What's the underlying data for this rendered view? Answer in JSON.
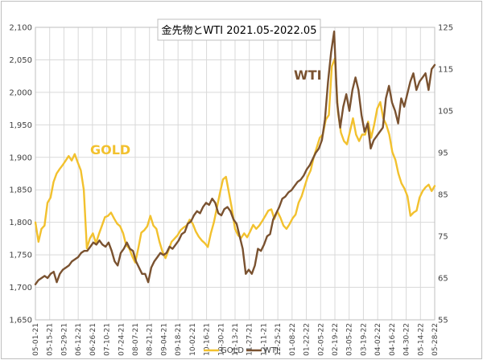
{
  "chart_data": {
    "type": "line",
    "title": "金先物とWTI 2021.05-2022.05",
    "y_left": {
      "min": 1650,
      "max": 2100,
      "step": 50,
      "ticks": [
        "1,650",
        "1,700",
        "1,750",
        "1,800",
        "1,850",
        "1,900",
        "1,950",
        "2,000",
        "2,050",
        "2,100"
      ]
    },
    "y_right": {
      "min": 55,
      "max": 125,
      "step": 10,
      "ticks": [
        "55",
        "65",
        "75",
        "85",
        "95",
        "105",
        "115",
        "125"
      ]
    },
    "x_ticks": [
      "05-01-21",
      "05-15-21",
      "05-29-21",
      "06-12-21",
      "06-26-21",
      "07-10-21",
      "07-24-21",
      "08-07-21",
      "08-21-21",
      "09-04-21",
      "09-18-21",
      "10-02-21",
      "10-16-21",
      "10-30-21",
      "11-13-21",
      "11-27-21",
      "12-11-21",
      "12-25-21",
      "01-08-22",
      "01-22-22",
      "02-05-22",
      "02-19-22",
      "03-05-22",
      "03-19-22",
      "04-02-22",
      "04-16-22",
      "04-30-22",
      "05-14-22",
      "05-28-22"
    ],
    "grid": true,
    "series": [
      {
        "name": "GOLD",
        "axis": "left",
        "color": "#f2c12e",
        "values": [
          1800,
          1770,
          1790,
          1795,
          1830,
          1838,
          1862,
          1875,
          1882,
          1888,
          1895,
          1902,
          1895,
          1905,
          1892,
          1880,
          1850,
          1760,
          1775,
          1783,
          1768,
          1782,
          1795,
          1808,
          1810,
          1815,
          1806,
          1798,
          1794,
          1783,
          1765,
          1760,
          1748,
          1738,
          1760,
          1784,
          1788,
          1794,
          1810,
          1795,
          1790,
          1770,
          1755,
          1745,
          1757,
          1770,
          1775,
          1780,
          1788,
          1792,
          1795,
          1804,
          1798,
          1786,
          1778,
          1772,
          1768,
          1762,
          1783,
          1800,
          1823,
          1845,
          1866,
          1870,
          1845,
          1820,
          1790,
          1780,
          1776,
          1783,
          1777,
          1786,
          1796,
          1790,
          1795,
          1802,
          1810,
          1818,
          1820,
          1805,
          1817,
          1807,
          1795,
          1790,
          1797,
          1806,
          1812,
          1830,
          1840,
          1855,
          1870,
          1880,
          1900,
          1915,
          1930,
          1935,
          1958,
          1965,
          2040,
          2052,
          1970,
          1938,
          1925,
          1920,
          1940,
          1960,
          1935,
          1925,
          1935,
          1935,
          1955,
          1930,
          1950,
          1975,
          1985,
          1960,
          1950,
          1935,
          1908,
          1896,
          1875,
          1860,
          1852,
          1840,
          1810,
          1815,
          1818,
          1838,
          1848,
          1854,
          1858,
          1848,
          1856
        ]
      },
      {
        "name": "WTI",
        "axis": "right",
        "color": "#7a5230",
        "values": [
          63.5,
          64.5,
          65,
          65.5,
          65,
          66,
          66.5,
          64,
          66,
          67,
          67.5,
          68,
          69,
          69.5,
          70,
          71,
          71.5,
          71.5,
          72.5,
          73.5,
          73,
          74,
          73,
          72.5,
          73.5,
          71.5,
          69,
          68,
          71,
          72,
          73.5,
          72,
          71.5,
          69,
          67.5,
          66,
          66,
          64,
          67.5,
          69,
          70,
          71,
          70.5,
          71,
          72.5,
          72,
          73,
          74,
          75.5,
          76,
          78,
          78.5,
          80,
          81,
          80.5,
          82,
          83,
          82.5,
          84,
          83,
          80.5,
          80,
          81.5,
          82,
          81,
          79,
          78,
          75,
          72,
          66,
          67,
          66,
          68,
          72,
          71.5,
          73,
          75,
          75.5,
          79,
          80.5,
          82,
          84,
          84.5,
          85.5,
          86,
          87,
          88,
          88.5,
          89.5,
          91,
          92,
          93.5,
          95,
          96,
          98,
          103,
          112,
          119,
          124,
          107,
          101,
          106,
          109,
          105,
          110,
          113,
          110,
          104,
          100,
          102,
          96,
          98,
          99,
          100,
          101,
          108,
          111,
          107,
          105,
          102,
          108,
          106,
          109,
          112,
          114,
          110,
          112,
          113,
          114,
          110,
          115,
          116
        ]
      }
    ],
    "labels": {
      "gold": "GOLD",
      "wti": "WTI"
    },
    "legend": {
      "gold": "GOLD",
      "wti": "WTI"
    }
  }
}
